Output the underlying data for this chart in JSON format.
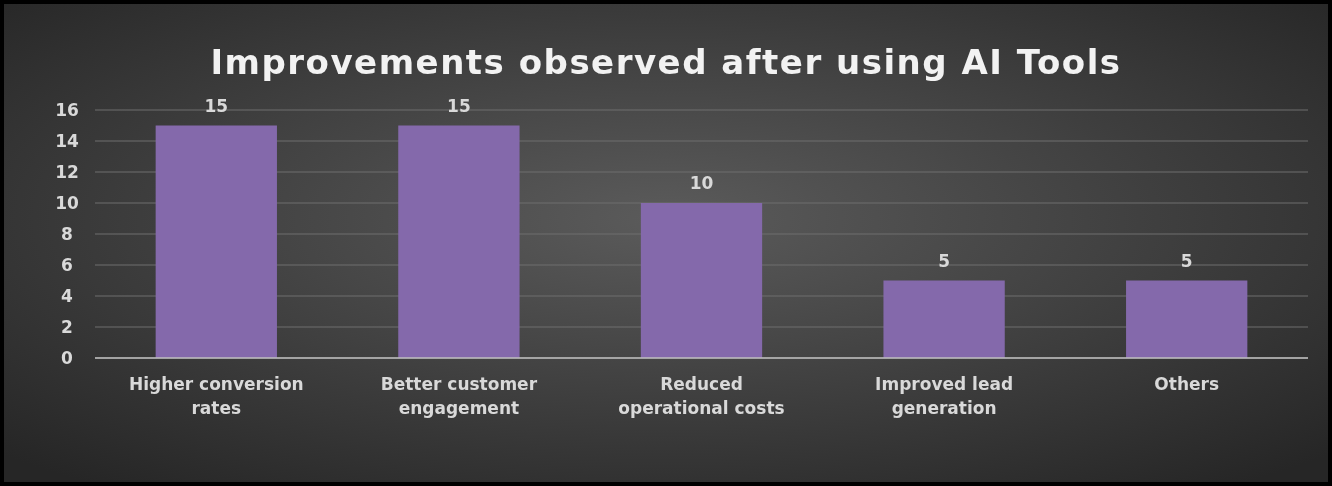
{
  "chart_data": {
    "type": "bar",
    "title": "Improvements observed after using AI Tools",
    "categories": [
      "Higher conversion rates",
      "Better customer engagement",
      "Reduced operational costs",
      "Improved lead generation",
      "Others"
    ],
    "values": [
      15,
      15,
      10,
      5,
      5
    ],
    "color": "#8469ab",
    "ylim": [
      0,
      16
    ],
    "yticks": [
      0,
      2,
      4,
      6,
      8,
      10,
      12,
      14,
      16
    ],
    "grid": "y",
    "data_labels": true
  }
}
